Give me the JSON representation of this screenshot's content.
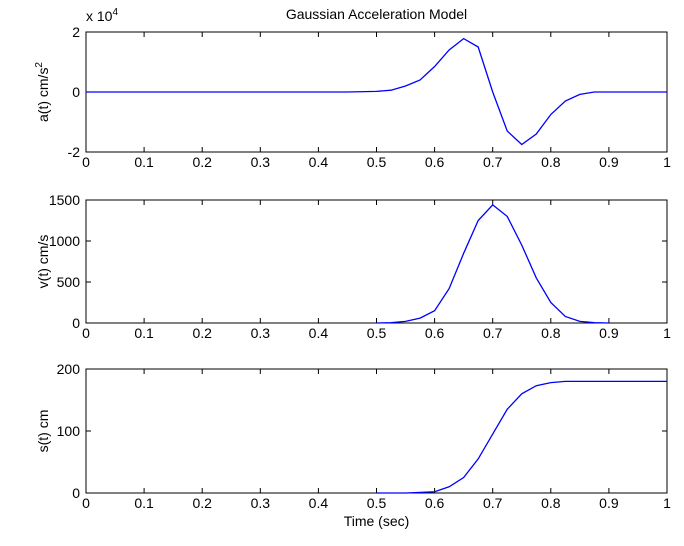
{
  "chart_data": [
    {
      "type": "line",
      "title": "Gaussian Acceleration Model",
      "xlabel": "",
      "ylabel": "a(t) cm/s",
      "ylabel_superscript": "2",
      "exponent_label": "x 10",
      "exponent_superscript": "4",
      "xlim": [
        0,
        1
      ],
      "ylim": [
        -2,
        2
      ],
      "xticks": [
        "0",
        "0.1",
        "0.2",
        "0.3",
        "0.4",
        "0.5",
        "0.6",
        "0.7",
        "0.8",
        "0.9",
        "1"
      ],
      "yticks": [
        "-2",
        "0",
        "2"
      ],
      "grid": false,
      "series": [
        {
          "x": [
            0,
            0.1,
            0.2,
            0.3,
            0.4,
            0.45,
            0.5,
            0.525,
            0.55,
            0.575,
            0.6,
            0.625,
            0.65,
            0.675,
            0.7,
            0.725,
            0.75,
            0.775,
            0.8,
            0.825,
            0.85,
            0.875,
            0.9,
            1.0
          ],
          "y": [
            0,
            0,
            0,
            0,
            0,
            0,
            0.02,
            0.06,
            0.2,
            0.4,
            0.85,
            1.4,
            1.78,
            1.5,
            0.0,
            -1.3,
            -1.75,
            -1.4,
            -0.75,
            -0.3,
            -0.08,
            0,
            0,
            0
          ]
        }
      ]
    },
    {
      "type": "line",
      "title": "",
      "xlabel": "",
      "ylabel": "v(t) cm/s",
      "xlim": [
        0,
        1
      ],
      "ylim": [
        0,
        1500
      ],
      "xticks": [
        "0",
        "0.1",
        "0.2",
        "0.3",
        "0.4",
        "0.5",
        "0.6",
        "0.7",
        "0.8",
        "0.9",
        "1"
      ],
      "yticks": [
        "0",
        "500",
        "1000",
        "1500"
      ],
      "grid": false,
      "series": [
        {
          "x": [
            0.5,
            0.525,
            0.55,
            0.575,
            0.6,
            0.625,
            0.65,
            0.675,
            0.7,
            0.725,
            0.75,
            0.775,
            0.8,
            0.825,
            0.85,
            0.875,
            0.9
          ],
          "y": [
            0,
            5,
            20,
            60,
            150,
            420,
            850,
            1250,
            1440,
            1300,
            950,
            550,
            250,
            80,
            20,
            5,
            0
          ]
        }
      ]
    },
    {
      "type": "line",
      "title": "",
      "xlabel": "Time (sec)",
      "ylabel": "s(t) cm",
      "xlim": [
        0,
        1
      ],
      "ylim": [
        0,
        200
      ],
      "xticks": [
        "0",
        "0.1",
        "0.2",
        "0.3",
        "0.4",
        "0.5",
        "0.6",
        "0.7",
        "0.8",
        "0.9",
        "1"
      ],
      "yticks": [
        "0",
        "100",
        "200"
      ],
      "grid": false,
      "series": [
        {
          "x": [
            0.5,
            0.55,
            0.6,
            0.625,
            0.65,
            0.675,
            0.7,
            0.725,
            0.75,
            0.775,
            0.8,
            0.825,
            1.0
          ],
          "y": [
            0,
            0,
            2,
            10,
            25,
            55,
            95,
            135,
            160,
            173,
            178,
            180,
            180
          ]
        }
      ]
    }
  ]
}
